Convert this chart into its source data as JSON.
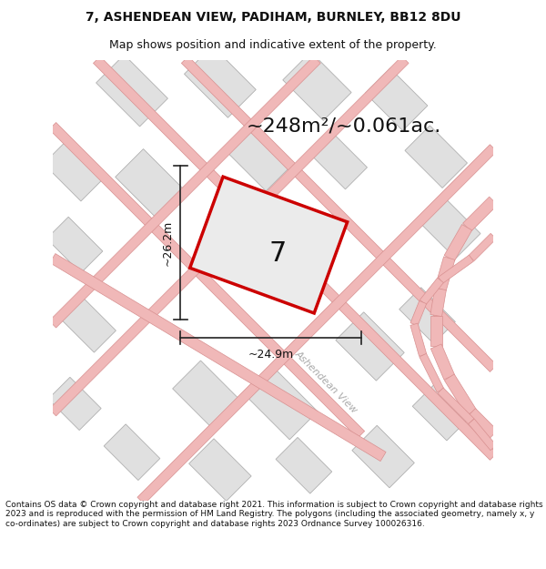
{
  "title_line1": "7, ASHENDEAN VIEW, PADIHAM, BURNLEY, BB12 8DU",
  "title_line2": "Map shows position and indicative extent of the property.",
  "area_label": "~248m²/~0.061ac.",
  "dimension_width": "~24.9m",
  "dimension_height": "~26.2m",
  "plot_number": "7",
  "street_name": "Ashendean View",
  "footer_text": "Contains OS data © Crown copyright and database right 2021. This information is subject to Crown copyright and database rights 2023 and is reproduced with the permission of HM Land Registry. The polygons (including the associated geometry, namely x, y co-ordinates) are subject to Crown copyright and database rights 2023 Ordnance Survey 100026316.",
  "map_bg": "#f7f6f4",
  "plot_fill": "#ebebeb",
  "plot_edge": "#cc0000",
  "building_fill": "#e0e0e0",
  "building_edge": "#b0b0b0",
  "road_line_color": "#f0b8b8",
  "road_boundary_color": "#d89090",
  "dimension_line_color": "#222222",
  "text_color": "#111111",
  "street_label_color": "#aaaaaa",
  "title_fontsize": 10,
  "subtitle_fontsize": 9,
  "area_fontsize": 16,
  "dim_fontsize": 9,
  "plot_num_fontsize": 22
}
